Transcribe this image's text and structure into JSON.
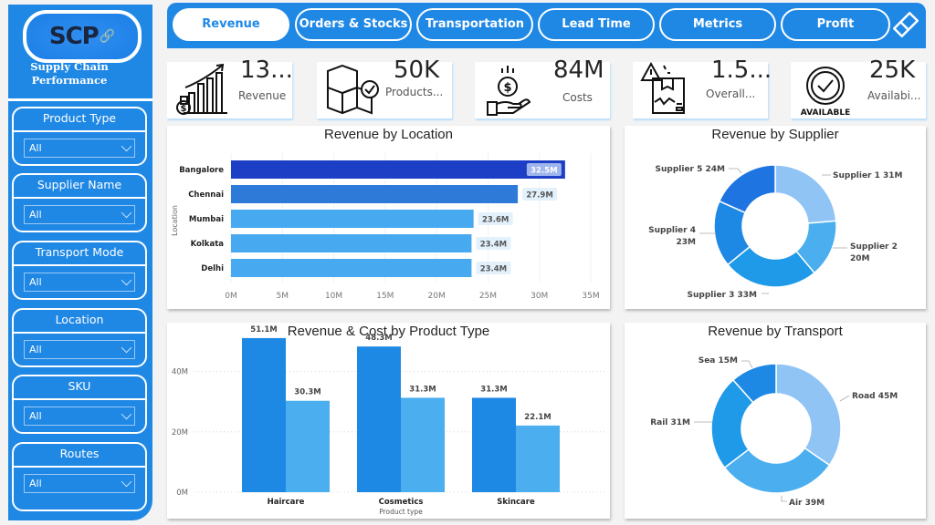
{
  "logo": {
    "abbr": "SCP",
    "subtitle_line1": "Supply Chain",
    "subtitle_line2": "Performance"
  },
  "filters": [
    {
      "label": "Product Type",
      "value": "All"
    },
    {
      "label": "Supplier Name",
      "value": "All"
    },
    {
      "label": "Transport Mode",
      "value": "All"
    },
    {
      "label": "Location",
      "value": "All"
    },
    {
      "label": "SKU",
      "value": "All"
    },
    {
      "label": "Routes",
      "value": "All"
    }
  ],
  "nav": {
    "tabs": [
      {
        "label": "Revenue",
        "active": true
      },
      {
        "label": "Orders & Stocks",
        "active": false
      },
      {
        "label": "Transportation",
        "active": false
      },
      {
        "label": "Lead Time",
        "active": false
      },
      {
        "label": "Metrics",
        "active": false
      },
      {
        "label": "Profit",
        "active": false
      }
    ],
    "clear_icon": "eraser-icon"
  },
  "kpis": [
    {
      "value": "13...",
      "label": "Revenue",
      "icon": "revenue-growth-icon"
    },
    {
      "value": "50K",
      "label": "Products...",
      "icon": "boxes-check-icon"
    },
    {
      "value": "84M",
      "label": "Costs",
      "icon": "money-hand-icon"
    },
    {
      "value": "1.5...",
      "label": "Overall...",
      "icon": "damaged-box-icon"
    },
    {
      "value": "25K",
      "label": "Availabi...",
      "icon": "available-badge-icon",
      "badge_text": "AVAILABLE"
    }
  ],
  "chart_data": [
    {
      "type": "bar",
      "orientation": "horizontal",
      "title": "Revenue by Location",
      "ylabel": "Location",
      "xlabel": "",
      "categories": [
        "Bangalore",
        "Chennai",
        "Mumbai",
        "Kolkata",
        "Delhi"
      ],
      "values": [
        32.5,
        27.9,
        23.6,
        23.4,
        23.4
      ],
      "data_labels": [
        "32.5M",
        "27.9M",
        "23.6M",
        "23.4M",
        "23.4M"
      ],
      "colors": [
        "#1c3fc6",
        "#2d7ad9",
        "#47a9f0",
        "#47a9f0",
        "#47a9f0"
      ],
      "xlim": [
        0,
        35
      ],
      "xticks": [
        "0M",
        "5M",
        "10M",
        "15M",
        "20M",
        "25M",
        "30M",
        "35M"
      ],
      "grid": true
    },
    {
      "type": "pie",
      "donut": true,
      "title": "Revenue by Supplier",
      "categories": [
        "Supplier 1",
        "Supplier 2",
        "Supplier 3",
        "Supplier 4",
        "Supplier 5"
      ],
      "values": [
        31,
        20,
        33,
        23,
        24
      ],
      "data_labels": [
        "Supplier 1 31M",
        "Supplier 2 20M",
        "Supplier 3 33M",
        "Supplier 4 23M",
        "Supplier 5 24M"
      ],
      "colors": [
        "#90c4f5",
        "#4aaeef",
        "#1f9ae9",
        "#1e88e5",
        "#1e74e0"
      ]
    },
    {
      "type": "bar",
      "orientation": "vertical",
      "title": "Revenue & Cost by Product Type",
      "xlabel": "Product type",
      "ylabel": "",
      "categories": [
        "Haircare",
        "Cosmetics",
        "Skincare"
      ],
      "series": [
        {
          "name": "Revenue",
          "values": [
            51.1,
            48.3,
            31.3
          ],
          "labels": [
            "51.1M",
            "48.3M",
            "31.3M"
          ],
          "color": "#1e88e5"
        },
        {
          "name": "Cost",
          "values": [
            30.3,
            31.3,
            22.1
          ],
          "labels": [
            "30.3M",
            "31.3M",
            "22.1M"
          ],
          "color": "#4aaeef"
        }
      ],
      "ylim": [
        0,
        55
      ],
      "yticks": [
        "0M",
        "20M",
        "40M"
      ],
      "yticks_values": [
        0,
        20,
        40
      ],
      "grid": true
    },
    {
      "type": "pie",
      "donut": true,
      "title": "Revenue by Transport",
      "categories": [
        "Road",
        "Air",
        "Rail",
        "Sea"
      ],
      "values": [
        45,
        39,
        31,
        15
      ],
      "data_labels": [
        "Road 45M",
        "Air 39M",
        "Rail 31M",
        "Sea 15M"
      ],
      "colors": [
        "#90c4f5",
        "#4aaeef",
        "#1f9ae9",
        "#1e88e5"
      ]
    }
  ]
}
